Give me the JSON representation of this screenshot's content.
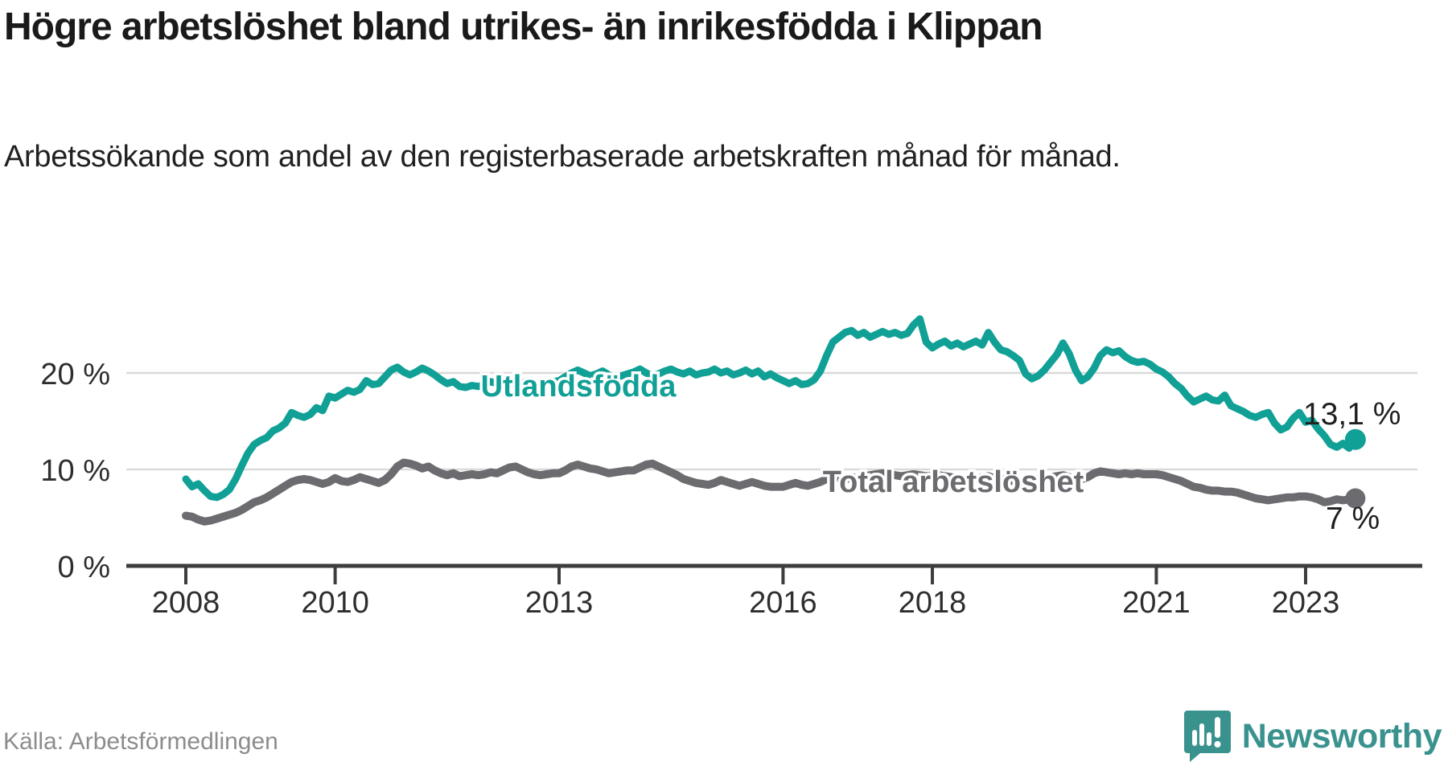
{
  "page": {
    "title": "Högre arbetslöshet bland utrikes- än inrikesfödda i Klippan",
    "subtitle": "Arbetssökande som andel av den registerbaserade arbetskraften månad för månad.",
    "source": "Källa: Arbetsförmedlingen",
    "brand": {
      "name": "Newsworthy",
      "logo_icon": "speech-bubble-bar-chart-exclamation-icon",
      "color": "#3a928f"
    }
  },
  "chart_data": {
    "type": "line",
    "unit": "%",
    "frequency": "monthly",
    "x_start": "2008-01",
    "x_end": "2023-09",
    "x_ticks": [
      "2008",
      "2010",
      "2013",
      "2016",
      "2018",
      "2021",
      "2023"
    ],
    "y_ticks": [
      {
        "value": 0,
        "label": "0 %"
      },
      {
        "value": 10,
        "label": "10 %"
      },
      {
        "value": 20,
        "label": "20 %"
      }
    ],
    "ylim": [
      0,
      30
    ],
    "grid": "horizontal",
    "legend_position": "inline-labels",
    "colors": {
      "axis": "#3d3d3d",
      "gridline": "#dadada",
      "tick_text": "#2e2e2e",
      "value_label_text": "#1f1f1f"
    },
    "series": [
      {
        "name": "Total arbetslöshet",
        "color": "#6c6c70",
        "end_label": "7 %",
        "end_value": 7.0,
        "values": [
          5.2,
          5.1,
          4.8,
          4.6,
          4.7,
          4.9,
          5.1,
          5.3,
          5.5,
          5.8,
          6.2,
          6.6,
          6.8,
          7.1,
          7.5,
          7.9,
          8.3,
          8.7,
          8.9,
          9.0,
          8.9,
          8.7,
          8.5,
          8.7,
          9.1,
          8.8,
          8.7,
          8.9,
          9.2,
          9.0,
          8.8,
          8.6,
          8.9,
          9.5,
          10.3,
          10.7,
          10.6,
          10.4,
          10.1,
          10.3,
          9.9,
          9.6,
          9.4,
          9.6,
          9.3,
          9.4,
          9.5,
          9.4,
          9.5,
          9.7,
          9.6,
          9.9,
          10.2,
          10.3,
          10.0,
          9.7,
          9.5,
          9.4,
          9.5,
          9.6,
          9.6,
          9.9,
          10.3,
          10.5,
          10.3,
          10.1,
          10.0,
          9.8,
          9.6,
          9.7,
          9.8,
          9.9,
          9.9,
          10.2,
          10.5,
          10.6,
          10.3,
          10.0,
          9.7,
          9.4,
          9.0,
          8.8,
          8.6,
          8.5,
          8.4,
          8.6,
          8.9,
          8.7,
          8.5,
          8.3,
          8.5,
          8.7,
          8.5,
          8.3,
          8.2,
          8.2,
          8.2,
          8.4,
          8.6,
          8.4,
          8.3,
          8.5,
          8.7,
          9.0,
          9.2,
          9.1,
          9.0,
          9.1,
          9.2,
          9.3,
          9.4,
          9.5,
          9.6,
          9.5,
          9.4,
          9.3,
          9.4,
          9.5,
          9.4,
          9.3,
          9.3,
          9.4,
          9.3,
          9.2,
          9.1,
          9.0,
          9.0,
          9.1,
          9.2,
          9.3,
          9.1,
          9.0,
          8.9,
          8.8,
          8.7,
          8.8,
          8.9,
          9.0,
          9.1,
          9.2,
          9.3,
          9.4,
          9.2,
          9.1,
          9.0,
          9.2,
          9.6,
          9.8,
          9.7,
          9.6,
          9.5,
          9.6,
          9.5,
          9.6,
          9.5,
          9.5,
          9.5,
          9.4,
          9.2,
          9.0,
          8.8,
          8.5,
          8.2,
          8.1,
          7.9,
          7.8,
          7.8,
          7.7,
          7.7,
          7.6,
          7.4,
          7.2,
          7.0,
          6.9,
          6.8,
          6.9,
          7.0,
          7.1,
          7.1,
          7.2,
          7.2,
          7.1,
          6.9,
          6.6,
          6.7,
          6.9,
          6.8,
          6.9,
          7.0
        ]
      },
      {
        "name": "Utlandsfödda",
        "color": "#10a096",
        "end_label": "13,1 %",
        "end_value": 13.1,
        "values": [
          9.0,
          8.2,
          8.5,
          7.8,
          7.2,
          7.1,
          7.4,
          7.9,
          9.0,
          10.4,
          11.7,
          12.6,
          13.0,
          13.3,
          14.0,
          14.3,
          14.8,
          15.9,
          15.6,
          15.4,
          15.7,
          16.4,
          16.1,
          17.6,
          17.4,
          17.8,
          18.2,
          18.0,
          18.3,
          19.2,
          18.8,
          18.9,
          19.6,
          20.3,
          20.6,
          20.1,
          19.8,
          20.1,
          20.5,
          20.2,
          19.8,
          19.3,
          18.9,
          19.1,
          18.6,
          18.5,
          18.7,
          18.6,
          18.8,
          19.1,
          18.9,
          19.3,
          19.0,
          18.7,
          18.9,
          19.2,
          19.0,
          18.8,
          19.0,
          19.1,
          19.2,
          19.6,
          20.0,
          20.3,
          20.0,
          19.7,
          19.9,
          20.2,
          19.8,
          19.5,
          19.7,
          19.9,
          20.1,
          20.4,
          20.0,
          19.7,
          19.9,
          20.2,
          20.4,
          20.1,
          19.9,
          20.2,
          19.8,
          20.0,
          20.1,
          20.4,
          20.0,
          20.2,
          19.8,
          20.0,
          20.3,
          19.9,
          20.2,
          19.6,
          19.9,
          19.5,
          19.2,
          18.9,
          19.2,
          18.8,
          18.9,
          19.3,
          20.2,
          21.8,
          23.2,
          23.7,
          24.2,
          24.4,
          23.9,
          24.2,
          23.7,
          24.0,
          24.3,
          24.0,
          24.2,
          23.9,
          24.1,
          25.0,
          25.6,
          23.2,
          22.6,
          23.0,
          23.3,
          22.8,
          23.1,
          22.7,
          23.0,
          23.3,
          22.9,
          24.2,
          23.2,
          22.4,
          22.2,
          21.8,
          21.3,
          19.9,
          19.4,
          19.7,
          20.3,
          21.1,
          21.9,
          23.1,
          22.0,
          20.3,
          19.2,
          19.6,
          20.5,
          21.8,
          22.4,
          22.1,
          22.3,
          21.7,
          21.3,
          21.1,
          21.2,
          20.9,
          20.4,
          20.1,
          19.6,
          18.9,
          18.4,
          17.6,
          17.0,
          17.3,
          17.6,
          17.2,
          17.1,
          17.7,
          16.6,
          16.3,
          16.0,
          15.6,
          15.4,
          15.7,
          15.9,
          14.8,
          14.1,
          14.4,
          15.3,
          15.9,
          14.9,
          15.1,
          14.2,
          13.5,
          12.6,
          12.3,
          12.7,
          12.2,
          13.1
        ]
      }
    ]
  }
}
